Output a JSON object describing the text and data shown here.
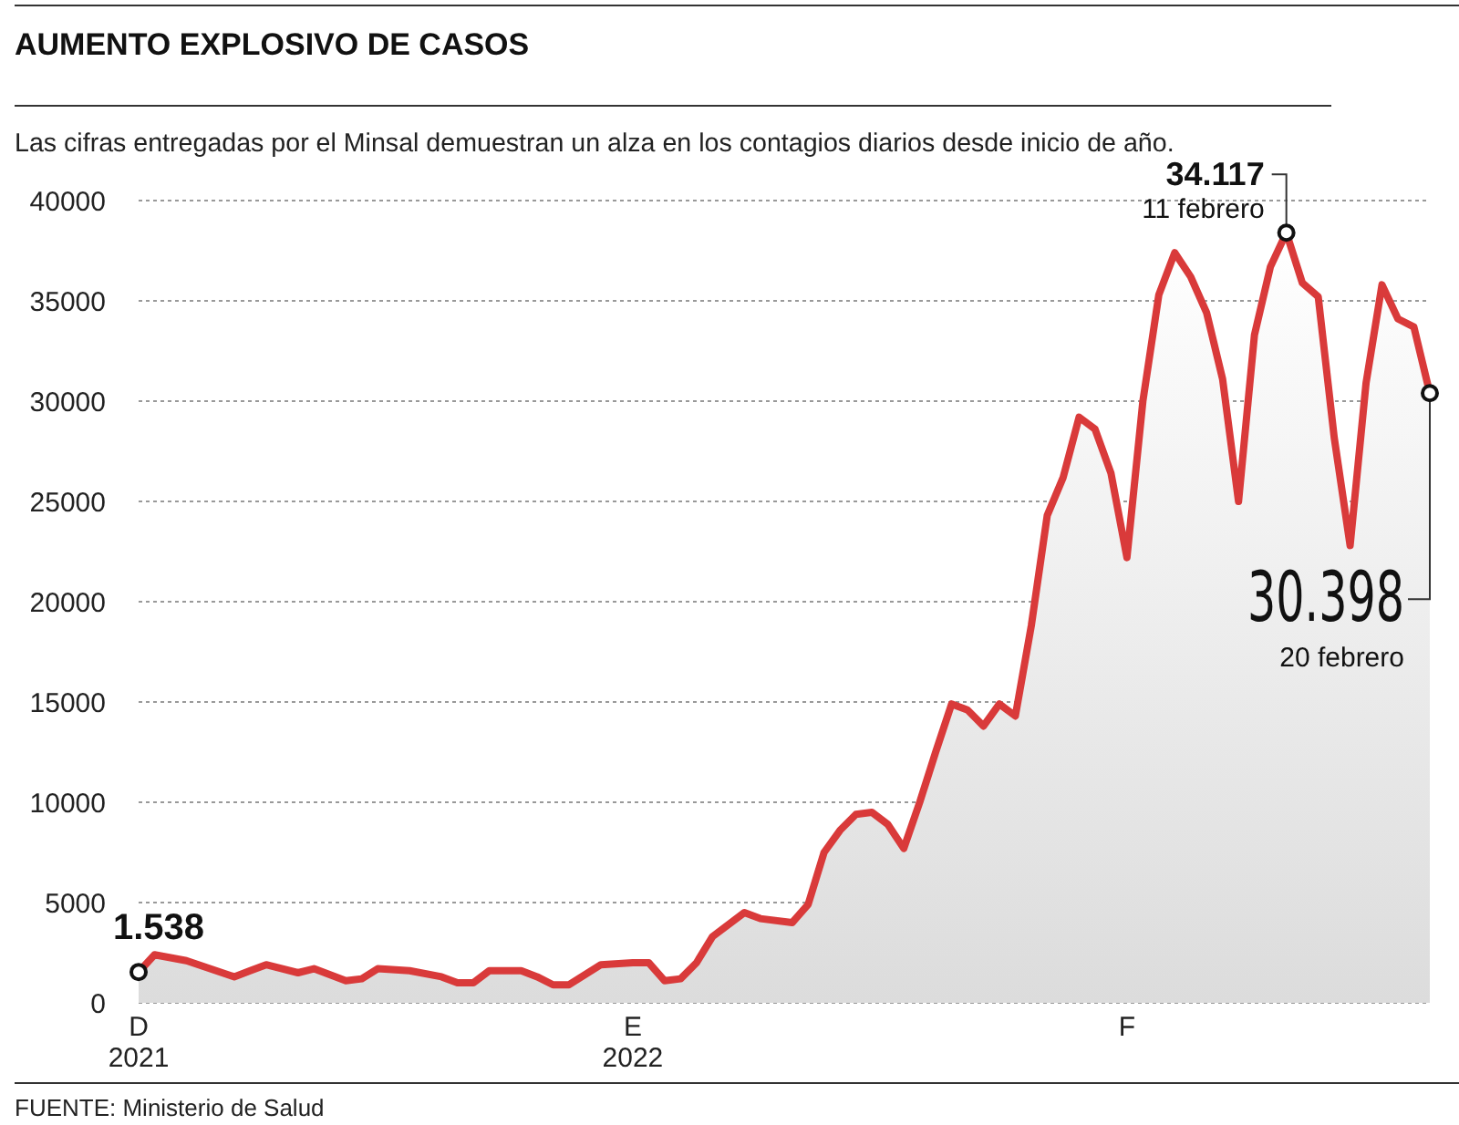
{
  "chart_data": {
    "type": "area",
    "title": "AUMENTO EXPLOSIVO DE CASOS",
    "subtitle": "Las cifras entregadas por el Minsal demuestran un alza en los contagios diarios desde inicio de año.",
    "x": [
      "2021-12-01",
      "2021-12-02",
      "2021-12-04",
      "2021-12-07",
      "2021-12-08",
      "2021-12-09",
      "2021-12-11",
      "2021-12-12",
      "2021-12-14",
      "2021-12-15",
      "2021-12-16",
      "2021-12-18",
      "2021-12-20",
      "2021-12-21",
      "2021-12-22",
      "2021-12-23",
      "2021-12-25",
      "2021-12-26",
      "2021-12-27",
      "2021-12-28",
      "2021-12-30",
      "2022-01-01",
      "2022-01-02",
      "2022-01-03",
      "2022-01-04",
      "2022-01-05",
      "2022-01-06",
      "2022-01-08",
      "2022-01-09",
      "2022-01-11",
      "2022-01-12",
      "2022-01-13",
      "2022-01-14",
      "2022-01-15",
      "2022-01-16",
      "2022-01-17",
      "2022-01-18",
      "2022-01-19",
      "2022-01-20",
      "2022-01-21",
      "2022-01-22",
      "2022-01-23",
      "2022-01-24",
      "2022-01-25",
      "2022-01-26",
      "2022-01-27",
      "2022-01-28",
      "2022-01-29",
      "2022-01-30",
      "2022-01-31",
      "2022-02-01",
      "2022-02-02",
      "2022-02-03",
      "2022-02-04",
      "2022-02-05",
      "2022-02-06",
      "2022-02-07",
      "2022-02-08",
      "2022-02-09",
      "2022-02-10",
      "2022-02-11",
      "2022-02-12",
      "2022-02-13",
      "2022-02-14",
      "2022-02-15",
      "2022-02-16",
      "2022-02-17",
      "2022-02-18",
      "2022-02-19",
      "2022-02-20"
    ],
    "series": [
      {
        "color": "#d93a3a",
        "values": [
          1538,
          2400,
          2100,
          1300,
          1600,
          1900,
          1500,
          1700,
          1100,
          1200,
          1700,
          1600,
          1300,
          1000,
          1000,
          1600,
          1600,
          1300,
          900,
          900,
          1900,
          2000,
          2000,
          1100,
          1200,
          2000,
          3300,
          4500,
          4200,
          4000,
          4900,
          7500,
          8600,
          9400,
          9500,
          8900,
          7700,
          10000,
          12500,
          14900,
          14600,
          13800,
          14900,
          14300,
          18800,
          24300,
          26200,
          29200,
          28600,
          26400,
          22200,
          30000,
          35300,
          37400,
          36200,
          34400,
          31100,
          25000,
          33300,
          36700,
          38400,
          35900,
          35200,
          28200,
          22800,
          30900,
          35800,
          34100,
          33700,
          30398
        ]
      }
    ],
    "xlim": [
      "2021-12-01",
      "2022-02-20"
    ],
    "xticks": [
      {
        "value": "2021-12-01",
        "label": "D\n2021"
      },
      {
        "value": "2022-01-01",
        "label": "E\n2022"
      },
      {
        "value": "2022-02-01",
        "label": "F"
      }
    ],
    "ylim": [
      0,
      40000
    ],
    "yticks": [
      0,
      5000,
      10000,
      15000,
      20000,
      25000,
      30000,
      35000,
      40000
    ],
    "grid": "y",
    "annotations": [
      {
        "text": "1.538",
        "x": "2021-12-01",
        "y": 1538
      },
      {
        "text": "34.117",
        "x": "2022-02-11",
        "y": 38400
      },
      "11 febrero",
      {
        "text": "30.398",
        "x": "2022-02-20",
        "y": 30398
      },
      "20 febrero",
      "FUENTE: Ministerio de Salud"
    ]
  }
}
